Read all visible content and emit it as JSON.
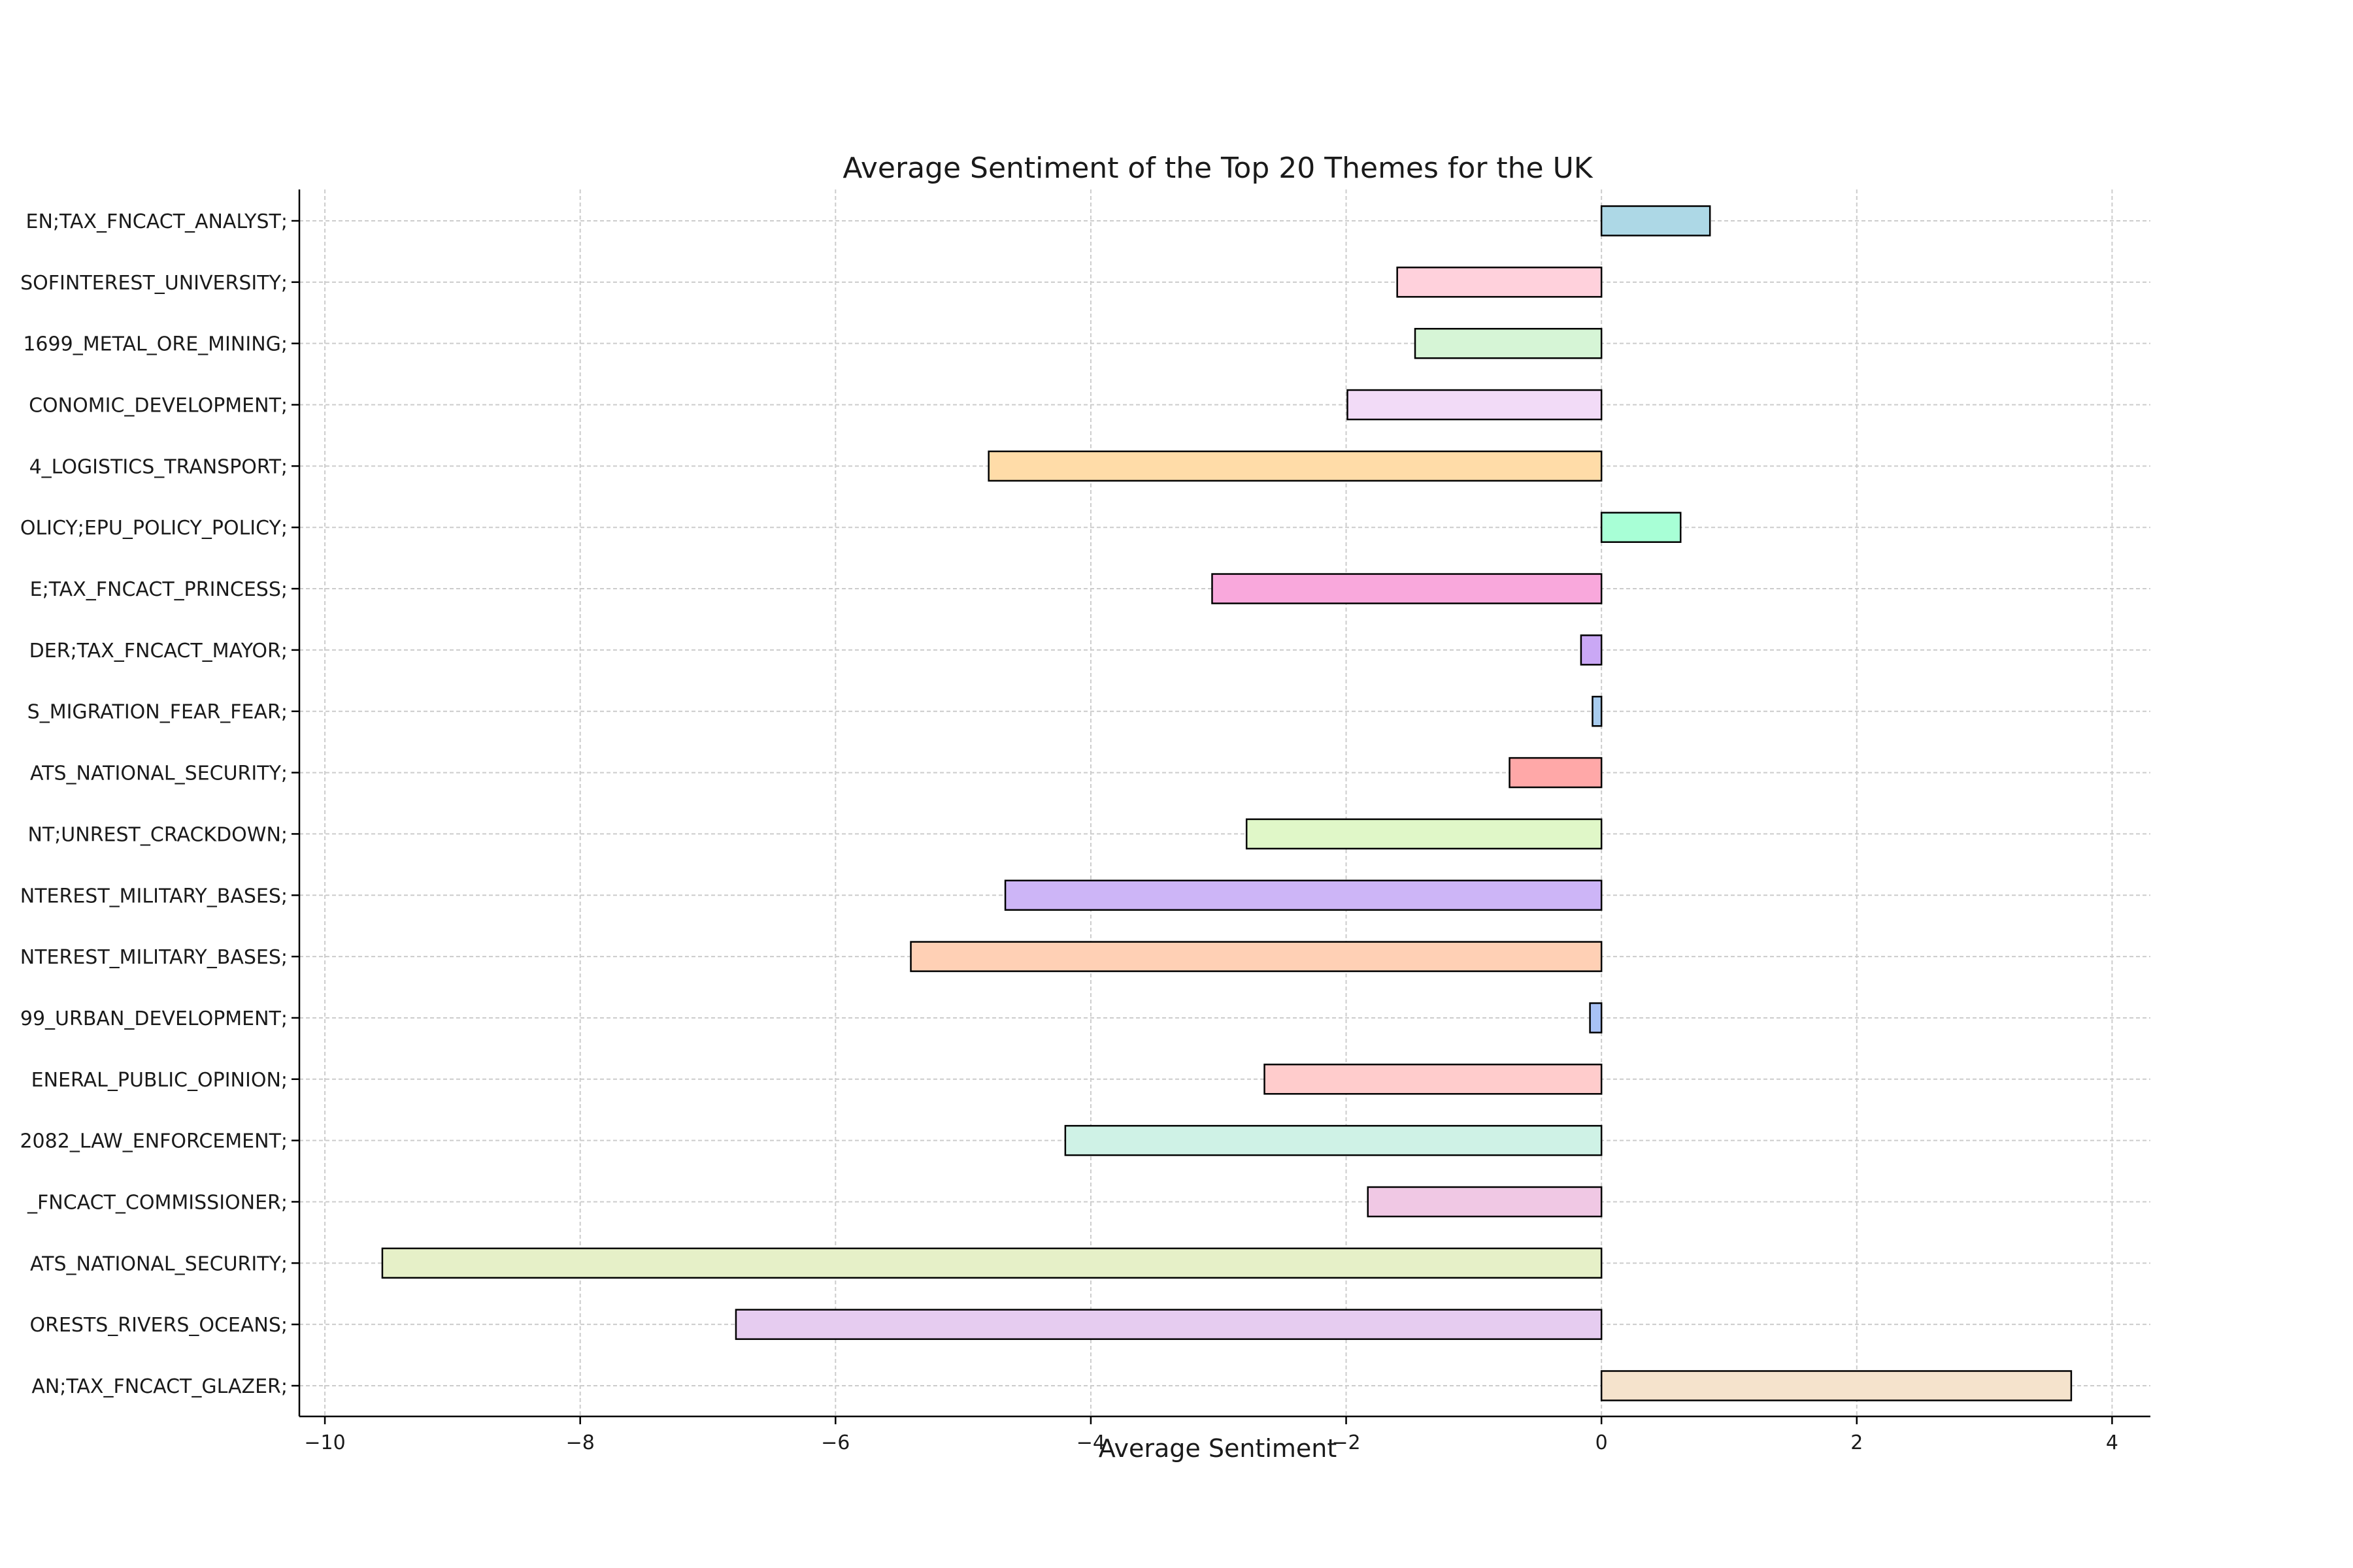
{
  "chart_data": {
    "type": "bar",
    "orientation": "horizontal",
    "title": "Average Sentiment of the Top 20 Themes for the UK",
    "xlabel": "Average Sentiment",
    "ylabel": "",
    "xlim": [
      -10.2,
      4.3
    ],
    "xticks": [
      -10,
      -8,
      -6,
      -4,
      -2,
      0,
      2,
      4
    ],
    "xtick_labels": [
      "−10",
      "−8",
      "−6",
      "−4",
      "−2",
      "0",
      "2",
      "4"
    ],
    "grid": true,
    "categories": [
      "EN;TAX_FNCACT_ANALYST;",
      "SOFINTEREST_UNIVERSITY;",
      "1699_METAL_ORE_MINING;",
      "CONOMIC_DEVELOPMENT;",
      "4_LOGISTICS_TRANSPORT;",
      "OLICY;EPU_POLICY_POLICY;",
      "E;TAX_FNCACT_PRINCESS;",
      "DER;TAX_FNCACT_MAYOR;",
      "S_MIGRATION_FEAR_FEAR;",
      "ATS_NATIONAL_SECURITY;",
      "NT;UNREST_CRACKDOWN;",
      "NTEREST_MILITARY_BASES;",
      "NTEREST_MILITARY_BASES;",
      "99_URBAN_DEVELOPMENT;",
      "ENERAL_PUBLIC_OPINION;",
      "2082_LAW_ENFORCEMENT;",
      "_FNCACT_COMMISSIONER;",
      "ATS_NATIONAL_SECURITY;",
      "ORESTS_RIVERS_OCEANS;",
      "AN;TAX_FNCACT_GLAZER;"
    ],
    "values": [
      0.85,
      -1.6,
      -1.46,
      -1.99,
      -4.8,
      0.62,
      -3.05,
      -0.16,
      -0.07,
      -0.72,
      -2.78,
      -4.67,
      -5.41,
      -0.09,
      -2.64,
      -4.2,
      -1.83,
      -9.55,
      -6.78,
      3.68
    ],
    "colors": [
      "#add8e6",
      "#ffd1dc",
      "#d6f5d6",
      "#f2dbf7",
      "#ffdca8",
      "#a8ffd6",
      "#f9a8dc",
      "#caa8f5",
      "#a8ccef",
      "#ffa8a8",
      "#e0f7c8",
      "#cdb5f7",
      "#ffd0b5",
      "#a8c1f5",
      "#ffcccc",
      "#cff2e6",
      "#f0c8e4",
      "#e6f0c8",
      "#e6ccf0",
      "#f5e3cc"
    ]
  }
}
